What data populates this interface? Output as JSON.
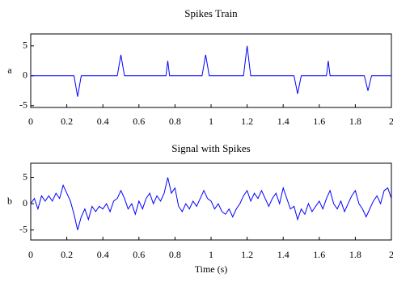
{
  "chart_data": [
    {
      "type": "line",
      "title": "Spikes Train",
      "ylabel": "a",
      "x": [
        0,
        0.24,
        0.26,
        0.28,
        0.48,
        0.5,
        0.52,
        0.75,
        0.76,
        0.77,
        0.95,
        0.97,
        0.99,
        1.18,
        1.2,
        1.22,
        1.46,
        1.48,
        1.5,
        1.64,
        1.65,
        1.66,
        1.85,
        1.87,
        1.89,
        2
      ],
      "values": [
        0,
        0,
        -3.5,
        0,
        0,
        3.5,
        0,
        0,
        2.5,
        0,
        0,
        3.5,
        0,
        0,
        5,
        0,
        0,
        -3,
        0,
        0,
        2.5,
        0,
        0,
        -2.5,
        0,
        0
      ],
      "color": "#0000ff",
      "xlim": [
        0,
        2
      ],
      "xticks": [
        0,
        0.2,
        0.4,
        0.6,
        0.8,
        1,
        1.2,
        1.4,
        1.6,
        1.8,
        2
      ],
      "ylim": [
        -5.3,
        7
      ],
      "yticks": [
        -5,
        0,
        5
      ]
    },
    {
      "type": "line",
      "title": "Signal with Spikes",
      "ylabel": "b",
      "xlabel": "Time (s)",
      "x": [
        0,
        0.02,
        0.04,
        0.06,
        0.08,
        0.1,
        0.12,
        0.14,
        0.16,
        0.18,
        0.2,
        0.22,
        0.24,
        0.26,
        0.28,
        0.3,
        0.32,
        0.34,
        0.36,
        0.38,
        0.4,
        0.42,
        0.44,
        0.46,
        0.48,
        0.5,
        0.52,
        0.54,
        0.56,
        0.58,
        0.6,
        0.62,
        0.64,
        0.66,
        0.68,
        0.7,
        0.72,
        0.74,
        0.76,
        0.78,
        0.8,
        0.82,
        0.84,
        0.86,
        0.88,
        0.9,
        0.92,
        0.94,
        0.96,
        0.98,
        1,
        1.02,
        1.04,
        1.06,
        1.08,
        1.1,
        1.12,
        1.14,
        1.16,
        1.18,
        1.2,
        1.22,
        1.24,
        1.26,
        1.28,
        1.3,
        1.32,
        1.34,
        1.36,
        1.38,
        1.4,
        1.42,
        1.44,
        1.46,
        1.48,
        1.5,
        1.52,
        1.54,
        1.56,
        1.58,
        1.6,
        1.62,
        1.64,
        1.66,
        1.68,
        1.7,
        1.72,
        1.74,
        1.76,
        1.78,
        1.8,
        1.82,
        1.84,
        1.86,
        1.88,
        1.9,
        1.92,
        1.94,
        1.96,
        1.98,
        2
      ],
      "values": [
        0,
        1,
        -1,
        1.5,
        0.5,
        1.5,
        0.5,
        2,
        1,
        3.5,
        2,
        0.5,
        -2,
        -5,
        -2.5,
        -1,
        -3,
        -0.5,
        -1.5,
        -0.5,
        -1,
        0,
        -1.5,
        0.5,
        1,
        2.5,
        1,
        -1,
        0,
        -2,
        0.5,
        -1,
        1,
        2,
        0,
        1.5,
        0.5,
        2,
        5,
        2,
        3,
        -0.5,
        -1.5,
        0,
        -1,
        0.5,
        -0.5,
        1,
        2.5,
        1,
        0.5,
        -1,
        0,
        -1.5,
        -2,
        -1,
        -2.5,
        -1,
        0,
        1.5,
        2.5,
        0.5,
        2,
        1,
        2.5,
        1,
        -0.5,
        1,
        2,
        0,
        3,
        1,
        -1,
        -0.5,
        -3,
        -1,
        -2,
        0,
        -1.5,
        -0.5,
        0.5,
        -1,
        1,
        2.5,
        0,
        -1,
        0.5,
        -1.5,
        0,
        1.5,
        2.5,
        0,
        -1,
        -2.5,
        -1,
        0.5,
        1.5,
        0,
        2.5,
        3,
        1
      ],
      "color": "#0000ff",
      "xlim": [
        0,
        2
      ],
      "xticks": [
        0,
        0.2,
        0.4,
        0.6,
        0.8,
        1,
        1.2,
        1.4,
        1.6,
        1.8,
        2
      ],
      "ylim": [
        -6.9,
        7.7
      ],
      "yticks": [
        -5,
        0,
        5
      ]
    }
  ]
}
